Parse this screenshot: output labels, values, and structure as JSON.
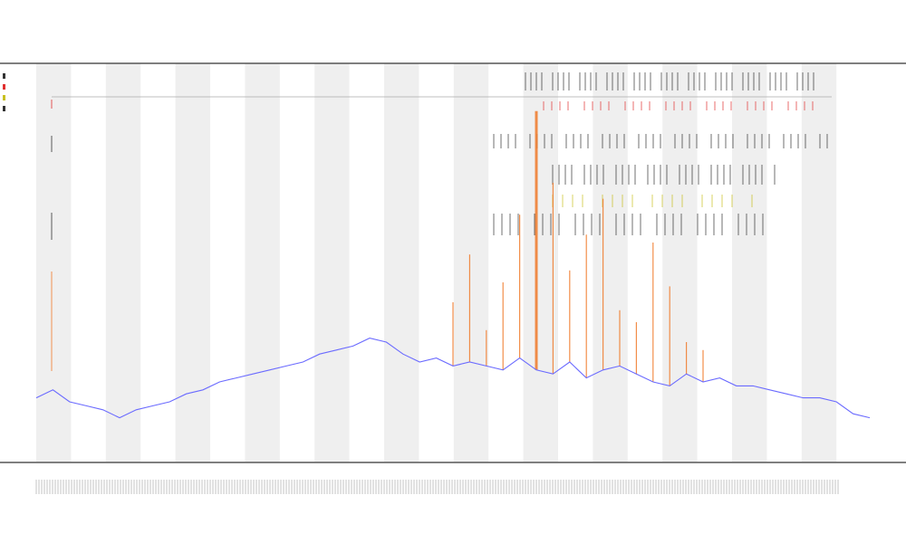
{
  "colors": {
    "band_fill": "#efefef",
    "axis": "#555555",
    "mean_line": "#6b6bff",
    "peak_line": "#f07a2a",
    "marker_red": "#e03030",
    "marker_yellow": "#c8c020",
    "marker_black": "#333333",
    "sequence_line": "#aaaaaa"
  },
  "header": {
    "title": "",
    "subtitle_1": "",
    "subtitle_2": ""
  },
  "legend": [
    {
      "label": "",
      "color": "#333333"
    },
    {
      "label": "",
      "color": "#e03030"
    },
    {
      "label": "",
      "color": "#c8c020"
    },
    {
      "label": "",
      "color": "#333333"
    }
  ],
  "annotations": {
    "label_a": "",
    "label_b": ""
  },
  "chart_data": {
    "type": "line",
    "title": "",
    "xlabel": "",
    "ylabel": "",
    "x": [
      0,
      1,
      2,
      3,
      4,
      5,
      6,
      7,
      8,
      9,
      10,
      11,
      12,
      13,
      14,
      15,
      16,
      17,
      18,
      19,
      20,
      21,
      22,
      23,
      24,
      25,
      26,
      27,
      28,
      29,
      30,
      31,
      32,
      33,
      34,
      35,
      36,
      37,
      38,
      39,
      40,
      41,
      42,
      43,
      44,
      45,
      46,
      47,
      48,
      49,
      50
    ],
    "xlim": [
      0,
      50
    ],
    "ylim": [
      0,
      100
    ],
    "grid": false,
    "legend_position": "top-left",
    "series": [
      {
        "name": "",
        "color": "#6b6bff",
        "values": [
          16,
          18,
          15,
          14,
          13,
          11,
          13,
          14,
          15,
          17,
          18,
          20,
          21,
          22,
          23,
          24,
          25,
          27,
          28,
          29,
          31,
          30,
          27,
          25,
          26,
          24,
          25,
          24,
          23,
          26,
          23,
          22,
          25,
          21,
          23,
          24,
          22,
          20,
          19,
          22,
          20,
          21,
          19,
          19,
          18,
          17,
          16,
          16,
          15,
          12,
          11
        ]
      },
      {
        "name": "",
        "color": "#f07a2a",
        "values": [
          null,
          null,
          null,
          null,
          null,
          null,
          null,
          null,
          null,
          null,
          null,
          null,
          null,
          null,
          null,
          null,
          null,
          null,
          null,
          null,
          null,
          null,
          null,
          null,
          null,
          40,
          52,
          33,
          45,
          62,
          88,
          70,
          48,
          57,
          66,
          38,
          35,
          55,
          44,
          30,
          28,
          null,
          null,
          null,
          null,
          null,
          null,
          null,
          null,
          null,
          null
        ]
      }
    ]
  }
}
